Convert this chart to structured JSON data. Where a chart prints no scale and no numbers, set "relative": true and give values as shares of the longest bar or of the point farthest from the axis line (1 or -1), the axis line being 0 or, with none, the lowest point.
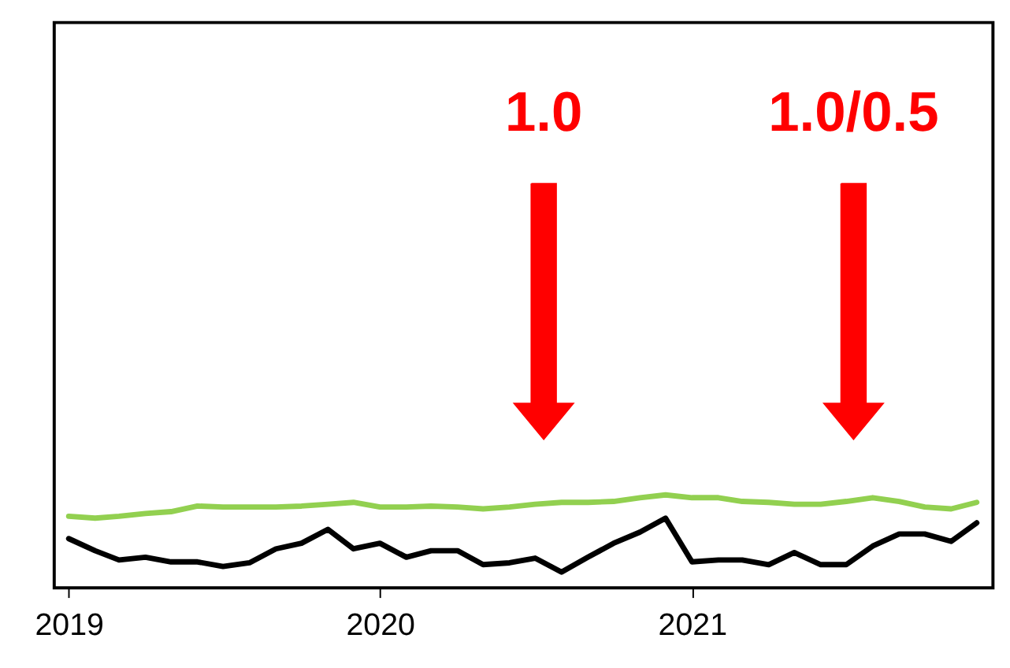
{
  "chart_data": {
    "type": "line",
    "relative": true,
    "x": [
      "2019-01",
      "2019-02",
      "2019-03",
      "2019-04",
      "2019-05",
      "2019-06",
      "2019-07",
      "2019-08",
      "2019-09",
      "2019-10",
      "2019-11",
      "2019-12",
      "2020-01",
      "2020-02",
      "2020-03",
      "2020-04",
      "2020-05",
      "2020-06",
      "2020-07",
      "2020-08",
      "2020-09",
      "2020-10",
      "2020-11",
      "2020-12",
      "2021-01",
      "2021-02",
      "2021-03",
      "2021-04",
      "2021-05",
      "2021-06",
      "2021-07",
      "2021-08",
      "2021-09",
      "2021-10",
      "2021-11",
      "2021-12"
    ],
    "series": [
      {
        "color": "#92d050",
        "values": [
          0.77,
          0.75,
          0.77,
          0.8,
          0.82,
          0.88,
          0.87,
          0.87,
          0.87,
          0.88,
          0.9,
          0.92,
          0.87,
          0.87,
          0.88,
          0.87,
          0.85,
          0.87,
          0.9,
          0.92,
          0.92,
          0.93,
          0.97,
          1.0,
          0.97,
          0.97,
          0.93,
          0.92,
          0.9,
          0.9,
          0.93,
          0.97,
          0.93,
          0.87,
          0.85,
          0.92
        ]
      },
      {
        "color": "#000000",
        "values": [
          0.53,
          0.4,
          0.3,
          0.33,
          0.28,
          0.28,
          0.23,
          0.27,
          0.42,
          0.48,
          0.63,
          0.42,
          0.48,
          0.33,
          0.4,
          0.4,
          0.25,
          0.27,
          0.32,
          0.17,
          0.33,
          0.48,
          0.6,
          0.75,
          0.28,
          0.3,
          0.3,
          0.25,
          0.38,
          0.25,
          0.25,
          0.45,
          0.58,
          0.58,
          0.5,
          0.7
        ]
      }
    ],
    "xlim": [
      "2018-12-15",
      "2021-12-20"
    ],
    "xticks": [
      "2019",
      "2020",
      "2021"
    ],
    "annotations": [
      "1.0",
      "1.0/0.5"
    ],
    "marker": "none",
    "line_style": "solid"
  }
}
